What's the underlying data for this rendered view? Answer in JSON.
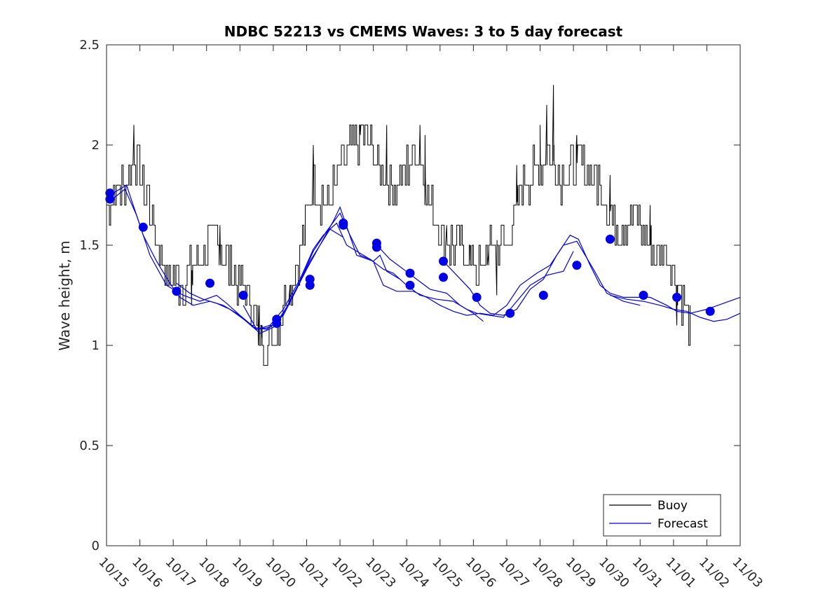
{
  "chart_data": {
    "type": "line",
    "title": "NDBC 52213 vs CMEMS Waves: 3 to 5 day forecast",
    "xlabel": "",
    "ylabel": "Wave height, m",
    "ylim": [
      0,
      2.5
    ],
    "xlim": [
      0,
      19
    ],
    "y_ticks": [
      0,
      0.5,
      1,
      1.5,
      2,
      2.5
    ],
    "y_tick_labels": [
      "0",
      "0.5",
      "1",
      "1.5",
      "2",
      "2.5"
    ],
    "x_tick_labels": [
      "10/15",
      "10/16",
      "10/17",
      "10/18",
      "10/19",
      "10/20",
      "10/21",
      "10/22",
      "10/23",
      "10/24",
      "10/25",
      "10/26",
      "10/27",
      "10/28",
      "10/29",
      "10/30",
      "10/31",
      "11/01",
      "11/02",
      "11/03"
    ],
    "legend": {
      "position": "bottom-right",
      "entries": [
        {
          "name": "Buoy",
          "color": "#000000"
        },
        {
          "name": "Forecast",
          "color": "#0000e6"
        }
      ]
    },
    "colors": {
      "buoy": "#000000",
      "forecast": "#0000e6",
      "axis": "#262626"
    },
    "buoy_anchors": [
      [
        0.0,
        1.7
      ],
      [
        0.2,
        1.75
      ],
      [
        0.5,
        1.8
      ],
      [
        0.7,
        1.9
      ],
      [
        0.9,
        1.95
      ],
      [
        1.0,
        1.85
      ],
      [
        1.2,
        1.75
      ],
      [
        1.4,
        1.6
      ],
      [
        1.6,
        1.45
      ],
      [
        1.8,
        1.35
      ],
      [
        2.0,
        1.35
      ],
      [
        2.2,
        1.32
      ],
      [
        2.4,
        1.35
      ],
      [
        2.7,
        1.4
      ],
      [
        3.0,
        1.5
      ],
      [
        3.2,
        1.55
      ],
      [
        3.4,
        1.5
      ],
      [
        3.6,
        1.42
      ],
      [
        3.8,
        1.35
      ],
      [
        4.0,
        1.3
      ],
      [
        4.2,
        1.25
      ],
      [
        4.4,
        1.15
      ],
      [
        4.6,
        1.05
      ],
      [
        4.8,
        1.0
      ],
      [
        5.0,
        1.05
      ],
      [
        5.2,
        1.15
      ],
      [
        5.4,
        1.25
      ],
      [
        5.6,
        1.35
      ],
      [
        5.8,
        1.45
      ],
      [
        6.0,
        1.65
      ],
      [
        6.2,
        1.85
      ],
      [
        6.4,
        1.75
      ],
      [
        6.6,
        1.7
      ],
      [
        6.8,
        1.8
      ],
      [
        7.0,
        1.88
      ],
      [
        7.2,
        1.95
      ],
      [
        7.4,
        2.0
      ],
      [
        7.6,
        2.05
      ],
      [
        7.8,
        2.05
      ],
      [
        8.0,
        1.95
      ],
      [
        8.2,
        1.85
      ],
      [
        8.4,
        1.8
      ],
      [
        8.6,
        1.78
      ],
      [
        8.8,
        1.82
      ],
      [
        9.0,
        1.88
      ],
      [
        9.2,
        1.95
      ],
      [
        9.4,
        1.95
      ],
      [
        9.6,
        1.8
      ],
      [
        9.8,
        1.65
      ],
      [
        10.0,
        1.55
      ],
      [
        10.2,
        1.5
      ],
      [
        10.4,
        1.5
      ],
      [
        10.6,
        1.48
      ],
      [
        10.8,
        1.45
      ],
      [
        11.0,
        1.4
      ],
      [
        11.2,
        1.35
      ],
      [
        11.4,
        1.45
      ],
      [
        11.6,
        1.55
      ],
      [
        11.8,
        1.5
      ],
      [
        12.0,
        1.5
      ],
      [
        12.2,
        1.65
      ],
      [
        12.4,
        1.78
      ],
      [
        12.6,
        1.82
      ],
      [
        12.8,
        1.85
      ],
      [
        13.0,
        1.9
      ],
      [
        13.2,
        1.95
      ],
      [
        13.4,
        1.92
      ],
      [
        13.6,
        1.85
      ],
      [
        13.8,
        1.85
      ],
      [
        14.0,
        1.92
      ],
      [
        14.2,
        1.9
      ],
      [
        14.4,
        1.88
      ],
      [
        14.6,
        1.85
      ],
      [
        14.8,
        1.8
      ],
      [
        15.0,
        1.72
      ],
      [
        15.2,
        1.62
      ],
      [
        15.4,
        1.62
      ],
      [
        15.6,
        1.6
      ],
      [
        15.8,
        1.65
      ],
      [
        16.0,
        1.6
      ],
      [
        16.2,
        1.55
      ],
      [
        16.4,
        1.45
      ],
      [
        16.6,
        1.5
      ],
      [
        16.8,
        1.45
      ],
      [
        17.0,
        1.35
      ],
      [
        17.2,
        1.25
      ],
      [
        17.4,
        1.15
      ],
      [
        17.53,
        1.1
      ]
    ],
    "buoy_spikes": [
      [
        0.82,
        2.1
      ],
      [
        2.55,
        1.2
      ],
      [
        3.4,
        1.6
      ],
      [
        4.55,
        1.0
      ],
      [
        4.65,
        1.1
      ],
      [
        5.5,
        1.3
      ],
      [
        6.2,
        2.0
      ],
      [
        7.6,
        2.1
      ],
      [
        8.4,
        2.1
      ],
      [
        9.4,
        2.1
      ],
      [
        9.55,
        2.05
      ],
      [
        10.2,
        1.6
      ],
      [
        10.9,
        1.5
      ],
      [
        11.45,
        1.45
      ],
      [
        11.7,
        1.25
      ],
      [
        12.3,
        1.9
      ],
      [
        13.0,
        2.1
      ],
      [
        13.4,
        2.3
      ],
      [
        13.2,
        2.2
      ],
      [
        14.1,
        2.05
      ],
      [
        15.1,
        1.85
      ],
      [
        16.3,
        1.7
      ],
      [
        17.1,
        1.1
      ]
    ],
    "forecast_series": [
      {
        "name": "Forecast",
        "points": [
          [
            0.1,
            1.72
          ],
          [
            0.55,
            1.78
          ],
          [
            0.9,
            1.65
          ],
          [
            1.3,
            1.45
          ],
          [
            1.8,
            1.3
          ],
          [
            2.3,
            1.25
          ],
          [
            2.8,
            1.22
          ],
          [
            3.3,
            1.25
          ],
          [
            3.6,
            1.21
          ],
          [
            4.0,
            1.15
          ],
          [
            4.5,
            1.08
          ],
          [
            4.9,
            1.09
          ],
          [
            5.3,
            1.15
          ],
          [
            5.7,
            1.28
          ],
          [
            6.1,
            1.42
          ],
          [
            6.7,
            1.58
          ],
          [
            7.1,
            1.54
          ]
        ]
      },
      {
        "name": "Forecast",
        "points": [
          [
            0.1,
            1.75
          ],
          [
            0.6,
            1.8
          ],
          [
            1.1,
            1.55
          ],
          [
            1.5,
            1.42
          ],
          [
            1.9,
            1.31
          ],
          [
            2.2,
            1.24
          ],
          [
            2.6,
            1.2
          ],
          [
            3.1,
            1.22
          ],
          [
            3.5,
            1.2
          ],
          [
            3.9,
            1.16
          ],
          [
            4.4,
            1.09
          ],
          [
            4.8,
            1.08
          ],
          [
            5.2,
            1.13
          ],
          [
            5.6,
            1.25
          ],
          [
            6.0,
            1.38
          ],
          [
            6.4,
            1.5
          ],
          [
            6.8,
            1.62
          ],
          [
            7.0,
            1.69
          ],
          [
            7.5,
            1.45
          ],
          [
            8.0,
            1.42
          ],
          [
            8.2,
            1.45
          ],
          [
            8.4,
            1.37
          ],
          [
            8.8,
            1.33
          ]
        ]
      },
      {
        "name": "Forecast",
        "points": [
          [
            2.1,
            1.31
          ],
          [
            2.5,
            1.26
          ],
          [
            2.9,
            1.23
          ],
          [
            3.3,
            1.21
          ],
          [
            3.7,
            1.18
          ],
          [
            4.2,
            1.12
          ],
          [
            4.6,
            1.06
          ],
          [
            5.0,
            1.09
          ],
          [
            5.4,
            1.19
          ],
          [
            5.8,
            1.32
          ],
          [
            6.2,
            1.47
          ],
          [
            6.6,
            1.57
          ],
          [
            7.0,
            1.66
          ],
          [
            7.3,
            1.55
          ],
          [
            7.6,
            1.45
          ],
          [
            7.9,
            1.43
          ],
          [
            8.3,
            1.38
          ],
          [
            8.6,
            1.36
          ],
          [
            9.0,
            1.3
          ],
          [
            9.4,
            1.25
          ],
          [
            9.9,
            1.23
          ],
          [
            10.4,
            1.22
          ],
          [
            10.8,
            1.18
          ],
          [
            11.1,
            1.16
          ],
          [
            11.5,
            1.15
          ],
          [
            11.9,
            1.14
          ],
          [
            12.2,
            1.2
          ],
          [
            12.7,
            1.3
          ],
          [
            13.2,
            1.35
          ],
          [
            13.7,
            1.37
          ],
          [
            14.0,
            1.47
          ]
        ]
      },
      {
        "name": "Forecast",
        "points": [
          [
            4.1,
            1.2
          ],
          [
            4.5,
            1.08
          ],
          [
            4.9,
            1.1
          ],
          [
            5.3,
            1.18
          ],
          [
            5.8,
            1.33
          ],
          [
            6.2,
            1.48
          ],
          [
            6.5,
            1.55
          ],
          [
            6.9,
            1.61
          ],
          [
            7.2,
            1.5
          ],
          [
            7.6,
            1.46
          ],
          [
            8.0,
            1.42
          ],
          [
            8.3,
            1.3
          ],
          [
            8.7,
            1.27
          ],
          [
            9.2,
            1.27
          ],
          [
            9.6,
            1.24
          ],
          [
            10.0,
            1.2
          ],
          [
            10.4,
            1.17
          ],
          [
            10.8,
            1.15
          ],
          [
            11.2,
            1.16
          ],
          [
            11.6,
            1.15
          ],
          [
            12.0,
            1.2
          ],
          [
            12.4,
            1.3
          ],
          [
            12.9,
            1.36
          ],
          [
            13.3,
            1.4
          ],
          [
            13.7,
            1.5
          ],
          [
            14.1,
            1.52
          ],
          [
            14.6,
            1.38
          ],
          [
            15.0,
            1.26
          ],
          [
            15.5,
            1.22
          ],
          [
            16.0,
            1.2
          ]
        ]
      },
      {
        "name": "Forecast",
        "points": [
          [
            8.05,
            1.51
          ],
          [
            8.5,
            1.43
          ],
          [
            8.9,
            1.38
          ],
          [
            9.3,
            1.33
          ],
          [
            9.7,
            1.28
          ],
          [
            10.2,
            1.26
          ],
          [
            10.6,
            1.2
          ],
          [
            11.0,
            1.16
          ],
          [
            11.3,
            1.12
          ]
        ]
      },
      {
        "name": "Forecast",
        "points": [
          [
            10.1,
            1.42
          ],
          [
            10.5,
            1.35
          ],
          [
            10.9,
            1.28
          ],
          [
            11.2,
            1.2
          ],
          [
            11.5,
            1.16
          ],
          [
            11.9,
            1.15
          ],
          [
            12.3,
            1.18
          ],
          [
            12.7,
            1.28
          ],
          [
            13.1,
            1.33
          ],
          [
            13.5,
            1.45
          ],
          [
            13.9,
            1.55
          ],
          [
            14.15,
            1.53
          ],
          [
            14.5,
            1.4
          ],
          [
            14.8,
            1.3
          ],
          [
            15.1,
            1.26
          ],
          [
            15.5,
            1.24
          ],
          [
            15.9,
            1.24
          ],
          [
            16.3,
            1.24
          ],
          [
            16.8,
            1.2
          ],
          [
            17.1,
            1.17
          ],
          [
            17.5,
            1.16
          ],
          [
            18.0,
            1.18
          ],
          [
            18.5,
            1.21
          ],
          [
            19.0,
            1.24
          ]
        ]
      },
      {
        "name": "Forecast",
        "points": [
          [
            15.1,
            1.25
          ],
          [
            15.6,
            1.23
          ],
          [
            16.1,
            1.22
          ],
          [
            16.6,
            1.2
          ],
          [
            17.0,
            1.18
          ],
          [
            17.4,
            1.17
          ],
          [
            17.8,
            1.14
          ],
          [
            18.2,
            1.12
          ],
          [
            18.6,
            1.13
          ],
          [
            19.0,
            1.16
          ]
        ]
      }
    ],
    "forecast_markers": [
      [
        0.1,
        1.76
      ],
      [
        0.1,
        1.73
      ],
      [
        1.1,
        1.59
      ],
      [
        2.1,
        1.27
      ],
      [
        3.1,
        1.31
      ],
      [
        4.1,
        1.25
      ],
      [
        5.1,
        1.13
      ],
      [
        5.1,
        1.11
      ],
      [
        6.1,
        1.33
      ],
      [
        6.1,
        1.3
      ],
      [
        7.1,
        1.61
      ],
      [
        7.1,
        1.6
      ],
      [
        8.1,
        1.51
      ],
      [
        8.1,
        1.49
      ],
      [
        9.1,
        1.36
      ],
      [
        9.1,
        1.3
      ],
      [
        10.1,
        1.42
      ],
      [
        10.1,
        1.34
      ],
      [
        11.1,
        1.24
      ],
      [
        12.1,
        1.16
      ],
      [
        13.1,
        1.25
      ],
      [
        14.1,
        1.4
      ],
      [
        15.1,
        1.53
      ],
      [
        16.1,
        1.25
      ],
      [
        17.1,
        1.24
      ],
      [
        18.1,
        1.17
      ]
    ]
  }
}
